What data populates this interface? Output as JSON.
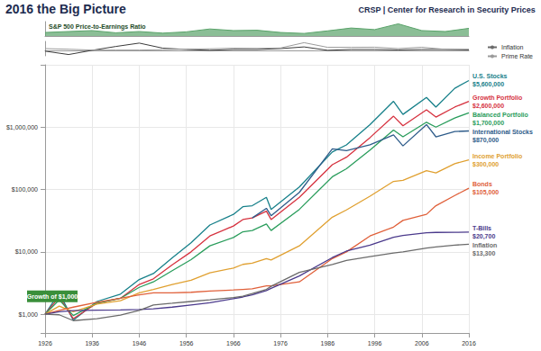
{
  "chart_data": [
    {
      "type": "line",
      "title": "2016 the Big Picture",
      "subtitle": "CRSP | Center for Research in Security Prices",
      "annotation": "Growth of $1,000",
      "log": "y",
      "grid": true,
      "x": [
        1926,
        1929,
        1932,
        1937,
        1942,
        1946,
        1949,
        1953,
        1957,
        1961,
        1966,
        1968,
        1970,
        1973,
        1974,
        1980,
        1987,
        1990,
        1995,
        2000,
        2002,
        2007,
        2009,
        2013,
        2016
      ],
      "xlim": [
        1926,
        2016
      ],
      "xticks": [
        1926,
        1936,
        1946,
        1956,
        1966,
        1976,
        1986,
        1996,
        2006,
        2016
      ],
      "ylim": [
        500,
        10000000
      ],
      "yticks": [
        {
          "value": 1000,
          "label": "$1,000"
        },
        {
          "value": 10000,
          "label": "$10,000"
        },
        {
          "value": 100000,
          "label": "$100,000"
        },
        {
          "value": 1000000,
          "label": "$1,000,000"
        }
      ],
      "series": [
        {
          "name": "U.S. Stocks",
          "color": "#17808a",
          "values": [
            1000,
            2200,
            800,
            1600,
            2100,
            3600,
            4500,
            8000,
            14000,
            27000,
            40000,
            53000,
            55000,
            75000,
            48000,
            110000,
            400000,
            520000,
            1100000,
            2600000,
            1600000,
            3000000,
            2100000,
            4200000,
            5600000
          ],
          "value_labels": [
            null,
            null,
            null,
            null,
            null,
            null,
            null,
            null,
            null,
            null,
            null,
            null,
            null,
            null,
            null,
            null,
            null,
            null,
            null,
            null,
            null,
            null,
            null,
            null,
            "$5,600,000"
          ]
        },
        {
          "name": "Growth Portfolio",
          "color": "#d6323f",
          "values": [
            1000,
            1900,
            850,
            1500,
            1800,
            3000,
            3700,
            6200,
            10000,
            18000,
            26000,
            33000,
            35000,
            45000,
            33000,
            75000,
            250000,
            330000,
            680000,
            1500000,
            1050000,
            1900000,
            1450000,
            2100000,
            2600000
          ],
          "value_labels": [
            null,
            null,
            null,
            null,
            null,
            null,
            null,
            null,
            null,
            null,
            null,
            null,
            null,
            null,
            null,
            null,
            null,
            null,
            null,
            null,
            null,
            null,
            null,
            null,
            "$2,600,000"
          ]
        },
        {
          "name": "Balanced Portfolio",
          "color": "#2a9d5c",
          "values": [
            1000,
            1700,
            950,
            1500,
            1800,
            2700,
            3300,
            5000,
            7500,
            12500,
            17000,
            21000,
            22000,
            28000,
            22000,
            48000,
            160000,
            215000,
            430000,
            900000,
            700000,
            1200000,
            1000000,
            1400000,
            1700000
          ],
          "value_labels": [
            null,
            null,
            null,
            null,
            null,
            null,
            null,
            null,
            null,
            null,
            null,
            null,
            null,
            null,
            null,
            null,
            null,
            null,
            null,
            null,
            null,
            null,
            null,
            null,
            "$1,700,000"
          ]
        },
        {
          "name": "International Stocks",
          "color": "#2e5c8a",
          "values": [
            null,
            null,
            null,
            null,
            null,
            null,
            null,
            null,
            null,
            null,
            null,
            null,
            35000,
            50000,
            38000,
            90000,
            450000,
            420000,
            520000,
            750000,
            500000,
            1100000,
            700000,
            850000,
            870000
          ],
          "value_labels": [
            null,
            null,
            null,
            null,
            null,
            null,
            null,
            null,
            null,
            null,
            null,
            null,
            null,
            null,
            null,
            null,
            null,
            null,
            null,
            null,
            null,
            null,
            null,
            null,
            "$870,000"
          ]
        },
        {
          "name": "Income Portfolio",
          "color": "#e0a030",
          "values": [
            1000,
            1350,
            1100,
            1450,
            1650,
            2200,
            2500,
            3000,
            3500,
            4600,
            5500,
            6300,
            6600,
            7800,
            7400,
            12500,
            36000,
            47000,
            78000,
            135000,
            140000,
            200000,
            185000,
            260000,
            300000
          ],
          "value_labels": [
            null,
            null,
            null,
            null,
            null,
            null,
            null,
            null,
            null,
            null,
            null,
            null,
            null,
            null,
            null,
            null,
            null,
            null,
            null,
            null,
            null,
            null,
            null,
            null,
            "$300,000"
          ]
        },
        {
          "name": "Bonds",
          "color": "#e0603a",
          "values": [
            1000,
            1150,
            1300,
            1550,
            1800,
            2050,
            2200,
            2200,
            2250,
            2350,
            2450,
            2500,
            2550,
            2850,
            2850,
            3300,
            7800,
            10000,
            18000,
            25000,
            32000,
            40000,
            55000,
            80000,
            105000
          ],
          "value_labels": [
            null,
            null,
            null,
            null,
            null,
            null,
            null,
            null,
            null,
            null,
            null,
            null,
            null,
            null,
            null,
            null,
            null,
            null,
            null,
            null,
            null,
            null,
            null,
            null,
            "$105,000"
          ]
        },
        {
          "name": "T-Bills",
          "color": "#4b3a8c",
          "values": [
            1000,
            1100,
            1140,
            1160,
            1170,
            1190,
            1220,
            1300,
            1410,
            1530,
            1780,
            1890,
            2040,
            2400,
            2600,
            4100,
            8100,
            10300,
            12800,
            17200,
            18300,
            20200,
            20500,
            20600,
            20700
          ],
          "value_labels": [
            null,
            null,
            null,
            null,
            null,
            null,
            null,
            null,
            null,
            null,
            null,
            null,
            null,
            null,
            null,
            null,
            null,
            null,
            null,
            null,
            null,
            null,
            null,
            null,
            "$20,700"
          ]
        },
        {
          "name": "Inflation",
          "color": "#6b6b6b",
          "values": [
            1000,
            980,
            790,
            850,
            970,
            1150,
            1410,
            1500,
            1600,
            1700,
            1850,
            1950,
            2150,
            2500,
            2800,
            4700,
            6300,
            7300,
            8400,
            9600,
            10000,
            11500,
            12000,
            12800,
            13300
          ],
          "value_labels": [
            null,
            null,
            null,
            null,
            null,
            null,
            null,
            null,
            null,
            null,
            null,
            null,
            null,
            null,
            null,
            null,
            null,
            null,
            null,
            null,
            null,
            null,
            null,
            null,
            "$13,300"
          ]
        }
      ]
    },
    {
      "type": "area",
      "title": "S&P 500 Price-to-Earnings Ratio",
      "tick_labels": false,
      "x": [
        1926,
        1931,
        1936,
        1941,
        1946,
        1951,
        1956,
        1961,
        1966,
        1971,
        1976,
        1981,
        1986,
        1991,
        1996,
        2001,
        2006,
        2011,
        2016
      ],
      "xlim": [
        1926,
        2016
      ],
      "ylim": [
        0,
        45
      ],
      "color": "#5aa36a",
      "values": [
        11,
        14,
        17,
        10,
        14,
        9,
        13,
        22,
        17,
        18,
        11,
        8,
        16,
        25,
        20,
        38,
        17,
        14,
        24
      ]
    },
    {
      "type": "line",
      "tick_labels": false,
      "legend": "right",
      "x": [
        1926,
        1931,
        1936,
        1941,
        1946,
        1951,
        1956,
        1961,
        1966,
        1971,
        1976,
        1981,
        1986,
        1991,
        1996,
        2001,
        2006,
        2011,
        2016
      ],
      "xlim": [
        1926,
        2016
      ],
      "ylim": [
        -12,
        22
      ],
      "series": [
        {
          "name": "Inflation",
          "color": "#3b3b3b",
          "values": [
            -1,
            -9,
            1,
            10,
            18,
            6,
            3,
            1,
            3,
            3,
            5,
            9,
            1,
            3,
            3,
            2,
            3,
            3,
            2
          ]
        },
        {
          "name": "Prime Rate",
          "color": "#9a9a9a",
          "values": [
            5,
            3.5,
            1.5,
            1.5,
            1.5,
            2.5,
            4,
            4.5,
            6,
            5.5,
            6.5,
            19,
            8,
            8,
            8.3,
            5,
            8.2,
            3.25,
            3.5
          ]
        }
      ]
    }
  ]
}
